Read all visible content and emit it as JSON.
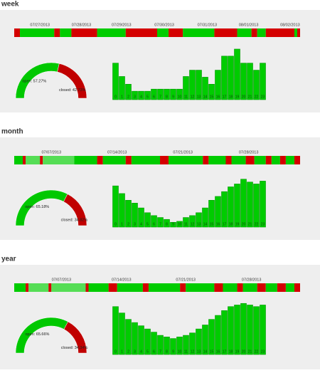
{
  "sections": [
    {
      "title": "week",
      "timeline": {
        "ticks": [
          {
            "label": "07/27/2013",
            "at": 9
          },
          {
            "label": "07/28/2013",
            "at": 23.5
          },
          {
            "label": "07/29/2013",
            "at": 37.5
          },
          {
            "label": "07/30/2013",
            "at": 52.5
          },
          {
            "label": "07/31/2013",
            "at": 67.5
          },
          {
            "label": "08/01/2013",
            "at": 82
          },
          {
            "label": "08/02/2013",
            "at": 96.5
          }
        ],
        "segments": [
          {
            "color": "#d40000",
            "width": 2
          },
          {
            "color": "#00cc00",
            "width": 12
          },
          {
            "color": "#d40000",
            "width": 2
          },
          {
            "color": "#00cc00",
            "width": 4
          },
          {
            "color": "#d40000",
            "width": 9
          },
          {
            "color": "#00cc00",
            "width": 10
          },
          {
            "color": "#d40000",
            "width": 11
          },
          {
            "color": "#00cc00",
            "width": 4
          },
          {
            "color": "#d40000",
            "width": 5
          },
          {
            "color": "#00cc00",
            "width": 11
          },
          {
            "color": "#d40000",
            "width": 8
          },
          {
            "color": "#00cc00",
            "width": 5
          },
          {
            "color": "#d40000",
            "width": 2
          },
          {
            "color": "#00cc00",
            "width": 3
          },
          {
            "color": "#d40000",
            "width": 10
          },
          {
            "color": "#00cc00",
            "width": 1
          },
          {
            "color": "#d40000",
            "width": 1
          }
        ]
      },
      "gauge": {
        "values": [
          57.27,
          42.73
        ],
        "labels": [
          "open: 57.27%",
          "closed: 42.73%"
        ]
      },
      "histogram": {
        "categories": [
          "0",
          "1",
          "2",
          "3",
          "4",
          "5",
          "6",
          "7",
          "8",
          "9",
          "10",
          "11",
          "12",
          "13",
          "14",
          "15",
          "16",
          "17",
          "18",
          "19",
          "20",
          "21",
          "22",
          "23"
        ],
        "values": [
          52,
          33,
          22,
          12,
          12,
          12,
          15,
          15,
          15,
          15,
          15,
          33,
          42,
          42,
          32,
          22,
          42,
          62,
          62,
          72,
          52,
          52,
          42,
          52
        ],
        "ylim": [
          0,
          75
        ]
      }
    },
    {
      "title": "month",
      "timeline": {
        "ticks": [
          {
            "label": "07/07/2013",
            "at": 13
          },
          {
            "label": "07/14/2013",
            "at": 36
          },
          {
            "label": "07/21/2013",
            "at": 59
          },
          {
            "label": "07/28/2013",
            "at": 82
          }
        ],
        "segments": [
          {
            "color": "#00cc00",
            "width": 3
          },
          {
            "color": "#d40000",
            "width": 1
          },
          {
            "color": "#55dd55",
            "width": 5
          },
          {
            "color": "#d40000",
            "width": 1
          },
          {
            "color": "#55dd55",
            "width": 11
          },
          {
            "color": "#00cc00",
            "width": 8
          },
          {
            "color": "#d40000",
            "width": 2
          },
          {
            "color": "#00cc00",
            "width": 8
          },
          {
            "color": "#d40000",
            "width": 2
          },
          {
            "color": "#00cc00",
            "width": 10
          },
          {
            "color": "#d40000",
            "width": 3
          },
          {
            "color": "#00cc00",
            "width": 12
          },
          {
            "color": "#d40000",
            "width": 2
          },
          {
            "color": "#00cc00",
            "width": 6
          },
          {
            "color": "#d40000",
            "width": 2
          },
          {
            "color": "#00cc00",
            "width": 5
          },
          {
            "color": "#d40000",
            "width": 3
          },
          {
            "color": "#00cc00",
            "width": 4
          },
          {
            "color": "#d40000",
            "width": 2
          },
          {
            "color": "#00cc00",
            "width": 3
          },
          {
            "color": "#d40000",
            "width": 2
          },
          {
            "color": "#00cc00",
            "width": 3
          },
          {
            "color": "#d40000",
            "width": 2
          }
        ]
      },
      "gauge": {
        "values": [
          65.18,
          34.82
        ],
        "labels": [
          "open: 65.18%",
          "closed: 34.82%"
        ]
      },
      "histogram": {
        "categories": [
          "0",
          "1",
          "2",
          "3",
          "4",
          "5",
          "6",
          "7",
          "8",
          "9",
          "10",
          "11",
          "12",
          "13",
          "14",
          "15",
          "16",
          "17",
          "18",
          "19",
          "20",
          "21",
          "22",
          "23"
        ],
        "values": [
          43,
          35,
          28,
          25,
          20,
          15,
          12,
          10,
          8,
          5,
          6,
          10,
          12,
          15,
          20,
          28,
          32,
          37,
          42,
          45,
          50,
          47,
          45,
          48
        ],
        "ylim": [
          0,
          55
        ]
      }
    },
    {
      "title": "year",
      "timeline": {
        "ticks": [
          {
            "label": "07/07/2013",
            "at": 16.5
          },
          {
            "label": "07/14/2013",
            "at": 37.5
          },
          {
            "label": "07/21/2013",
            "at": 60
          },
          {
            "label": "07/28/2013",
            "at": 83
          }
        ],
        "segments": [
          {
            "color": "#00cc00",
            "width": 4
          },
          {
            "color": "#d40000",
            "width": 1
          },
          {
            "color": "#55dd55",
            "width": 7
          },
          {
            "color": "#d40000",
            "width": 1
          },
          {
            "color": "#55dd55",
            "width": 12
          },
          {
            "color": "#d40000",
            "width": 1
          },
          {
            "color": "#00cc00",
            "width": 7
          },
          {
            "color": "#d40000",
            "width": 3
          },
          {
            "color": "#00cc00",
            "width": 9
          },
          {
            "color": "#d40000",
            "width": 2
          },
          {
            "color": "#00cc00",
            "width": 11
          },
          {
            "color": "#d40000",
            "width": 2
          },
          {
            "color": "#00cc00",
            "width": 10
          },
          {
            "color": "#d40000",
            "width": 3
          },
          {
            "color": "#00cc00",
            "width": 5
          },
          {
            "color": "#d40000",
            "width": 2
          },
          {
            "color": "#00cc00",
            "width": 5
          },
          {
            "color": "#d40000",
            "width": 3
          },
          {
            "color": "#00cc00",
            "width": 4
          },
          {
            "color": "#d40000",
            "width": 3
          },
          {
            "color": "#00cc00",
            "width": 3
          },
          {
            "color": "#d40000",
            "width": 2
          }
        ]
      },
      "gauge": {
        "values": [
          65.66,
          34.34
        ],
        "labels": [
          "open: 65.66%",
          "closed: 34.34%"
        ]
      },
      "histogram": {
        "categories": [
          "0",
          "1",
          "2",
          "3",
          "4",
          "5",
          "6",
          "7",
          "8",
          "9",
          "10",
          "11",
          "12",
          "13",
          "14",
          "15",
          "16",
          "17",
          "18",
          "19",
          "20",
          "21",
          "22",
          "23"
        ],
        "values": [
          60,
          52,
          44,
          40,
          36,
          32,
          28,
          24,
          22,
          20,
          22,
          24,
          27,
          32,
          37,
          44,
          49,
          55,
          60,
          62,
          64,
          62,
          60,
          62
        ],
        "ylim": [
          0,
          66
        ]
      }
    }
  ]
}
